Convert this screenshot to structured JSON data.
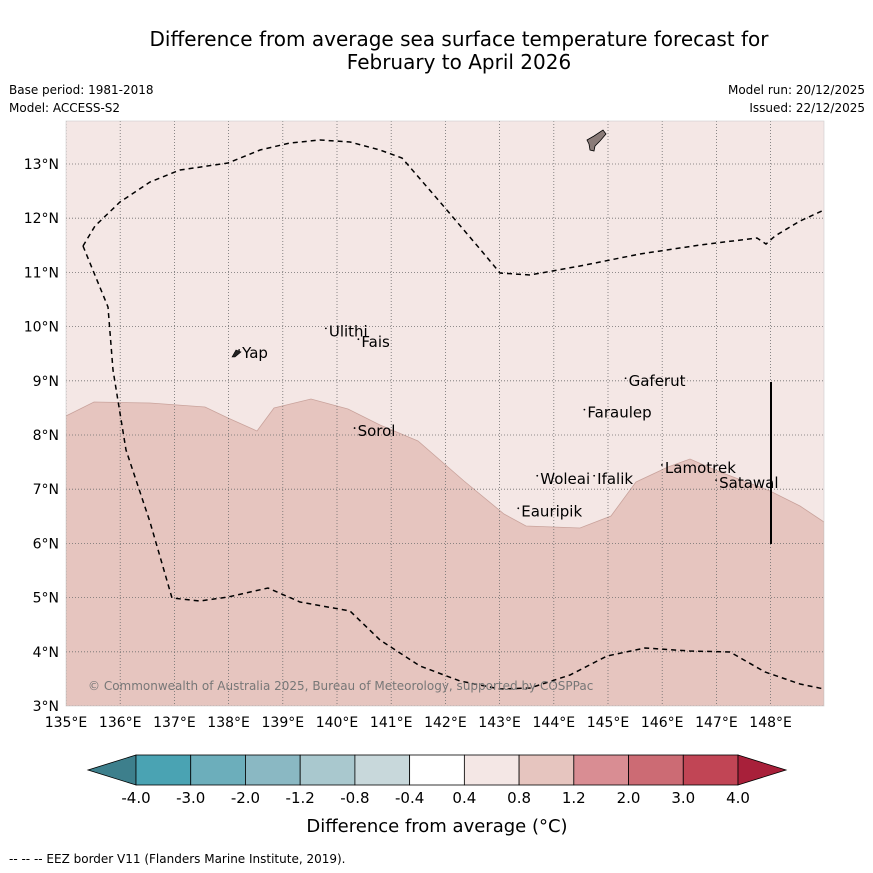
{
  "title_line1": "Difference from average sea surface temperature forecast for",
  "title_line2": "February to April 2026",
  "base_period": "Base period: 1981-2018",
  "model": "Model: ACCESS-S2",
  "model_run": "Model run: 20/12/2025",
  "issued": "Issued: 22/12/2025",
  "copyright": "© Commonwealth of Australia 2025, Bureau of Meteorology, supported by COSPPac",
  "lon_ticks": [
    "135°E",
    "136°E",
    "137°E",
    "138°E",
    "139°E",
    "140°E",
    "141°E",
    "142°E",
    "143°E",
    "144°E",
    "145°E",
    "146°E",
    "147°E",
    "148°E"
  ],
  "lat_ticks": [
    "3°N",
    "4°N",
    "5°N",
    "6°N",
    "7°N",
    "8°N",
    "9°N",
    "10°N",
    "11°N",
    "12°N",
    "13°N"
  ],
  "places": [
    {
      "name": "Ulithi",
      "lon": 139.85,
      "lat": 9.82
    },
    {
      "name": "Fais",
      "lon": 140.45,
      "lat": 9.62
    },
    {
      "name": "Yap",
      "lon": 138.25,
      "lat": 9.42
    },
    {
      "name": "Gaferut",
      "lon": 145.38,
      "lat": 8.9
    },
    {
      "name": "Faraulep",
      "lon": 144.62,
      "lat": 8.32
    },
    {
      "name": "Sorol",
      "lon": 140.38,
      "lat": 7.98
    },
    {
      "name": "Woleai",
      "lon": 143.75,
      "lat": 7.1
    },
    {
      "name": "Ifalik",
      "lon": 144.8,
      "lat": 7.1
    },
    {
      "name": "Lamotrek",
      "lon": 146.05,
      "lat": 7.3
    },
    {
      "name": "Satawal",
      "lon": 147.05,
      "lat": 7.02
    },
    {
      "name": "Eauripik",
      "lon": 143.4,
      "lat": 6.5
    }
  ],
  "colorbar": {
    "label": "Difference from average (°C)",
    "ticks": [
      "-4.0",
      "-3.0",
      "-2.0",
      "-1.2",
      "-0.8",
      "-0.4",
      "0.4",
      "0.8",
      "1.2",
      "2.0",
      "3.0",
      "4.0"
    ],
    "colors": [
      "#4aa3b3",
      "#6caebb",
      "#8ab8c3",
      "#a9c8ce",
      "#c8d8db",
      "#ffffff",
      "#f4e7e5",
      "#e6c5bf",
      "#d98d93",
      "#cc6b74",
      "#c14555"
    ],
    "low_extend_color": "#3d7f8c",
    "high_extend_color": "#a8203a"
  },
  "field_colors": {
    "light": "#f4e7e5",
    "medium": "#e6c5bf"
  },
  "footer": "--  --  -- EEZ border V11 (Flanders Marine Institute, 2019)."
}
